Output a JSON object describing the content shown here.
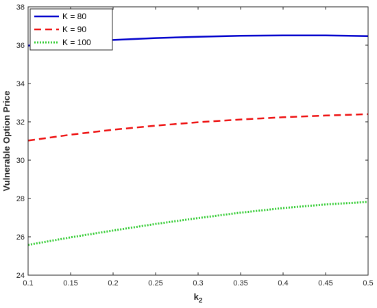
{
  "chart_data": {
    "type": "line",
    "xlabel": "k",
    "xlabel_sub": "2",
    "ylabel": "Vulnerable Option Price",
    "xlim": [
      0.1,
      0.5
    ],
    "ylim": [
      24,
      38
    ],
    "xticks": [
      0.1,
      0.15,
      0.2,
      0.25,
      0.3,
      0.35,
      0.4,
      0.45,
      0.5
    ],
    "xtick_labels": [
      "0.1",
      "0.15",
      "0.2",
      "0.25",
      "0.3",
      "0.35",
      "0.4",
      "0.45",
      "0.5"
    ],
    "yticks": [
      24,
      26,
      28,
      30,
      32,
      34,
      36,
      38
    ],
    "grid": false,
    "legend_position": "top-left",
    "x": [
      0.1,
      0.15,
      0.2,
      0.25,
      0.3,
      0.35,
      0.4,
      0.45,
      0.5
    ],
    "series": [
      {
        "name": "K = 80",
        "color": "#0000cc",
        "style": "solid",
        "values": [
          35.98,
          36.14,
          36.27,
          36.37,
          36.44,
          36.49,
          36.51,
          36.51,
          36.47
        ]
      },
      {
        "name": "K = 90",
        "color": "#ee1111",
        "style": "dashed",
        "values": [
          31.02,
          31.33,
          31.59,
          31.8,
          31.98,
          32.12,
          32.24,
          32.33,
          32.4
        ]
      },
      {
        "name": "K = 100",
        "color": "#33cc33",
        "style": "dotted",
        "values": [
          25.58,
          25.97,
          26.33,
          26.67,
          26.98,
          27.26,
          27.5,
          27.69,
          27.82
        ]
      }
    ]
  }
}
